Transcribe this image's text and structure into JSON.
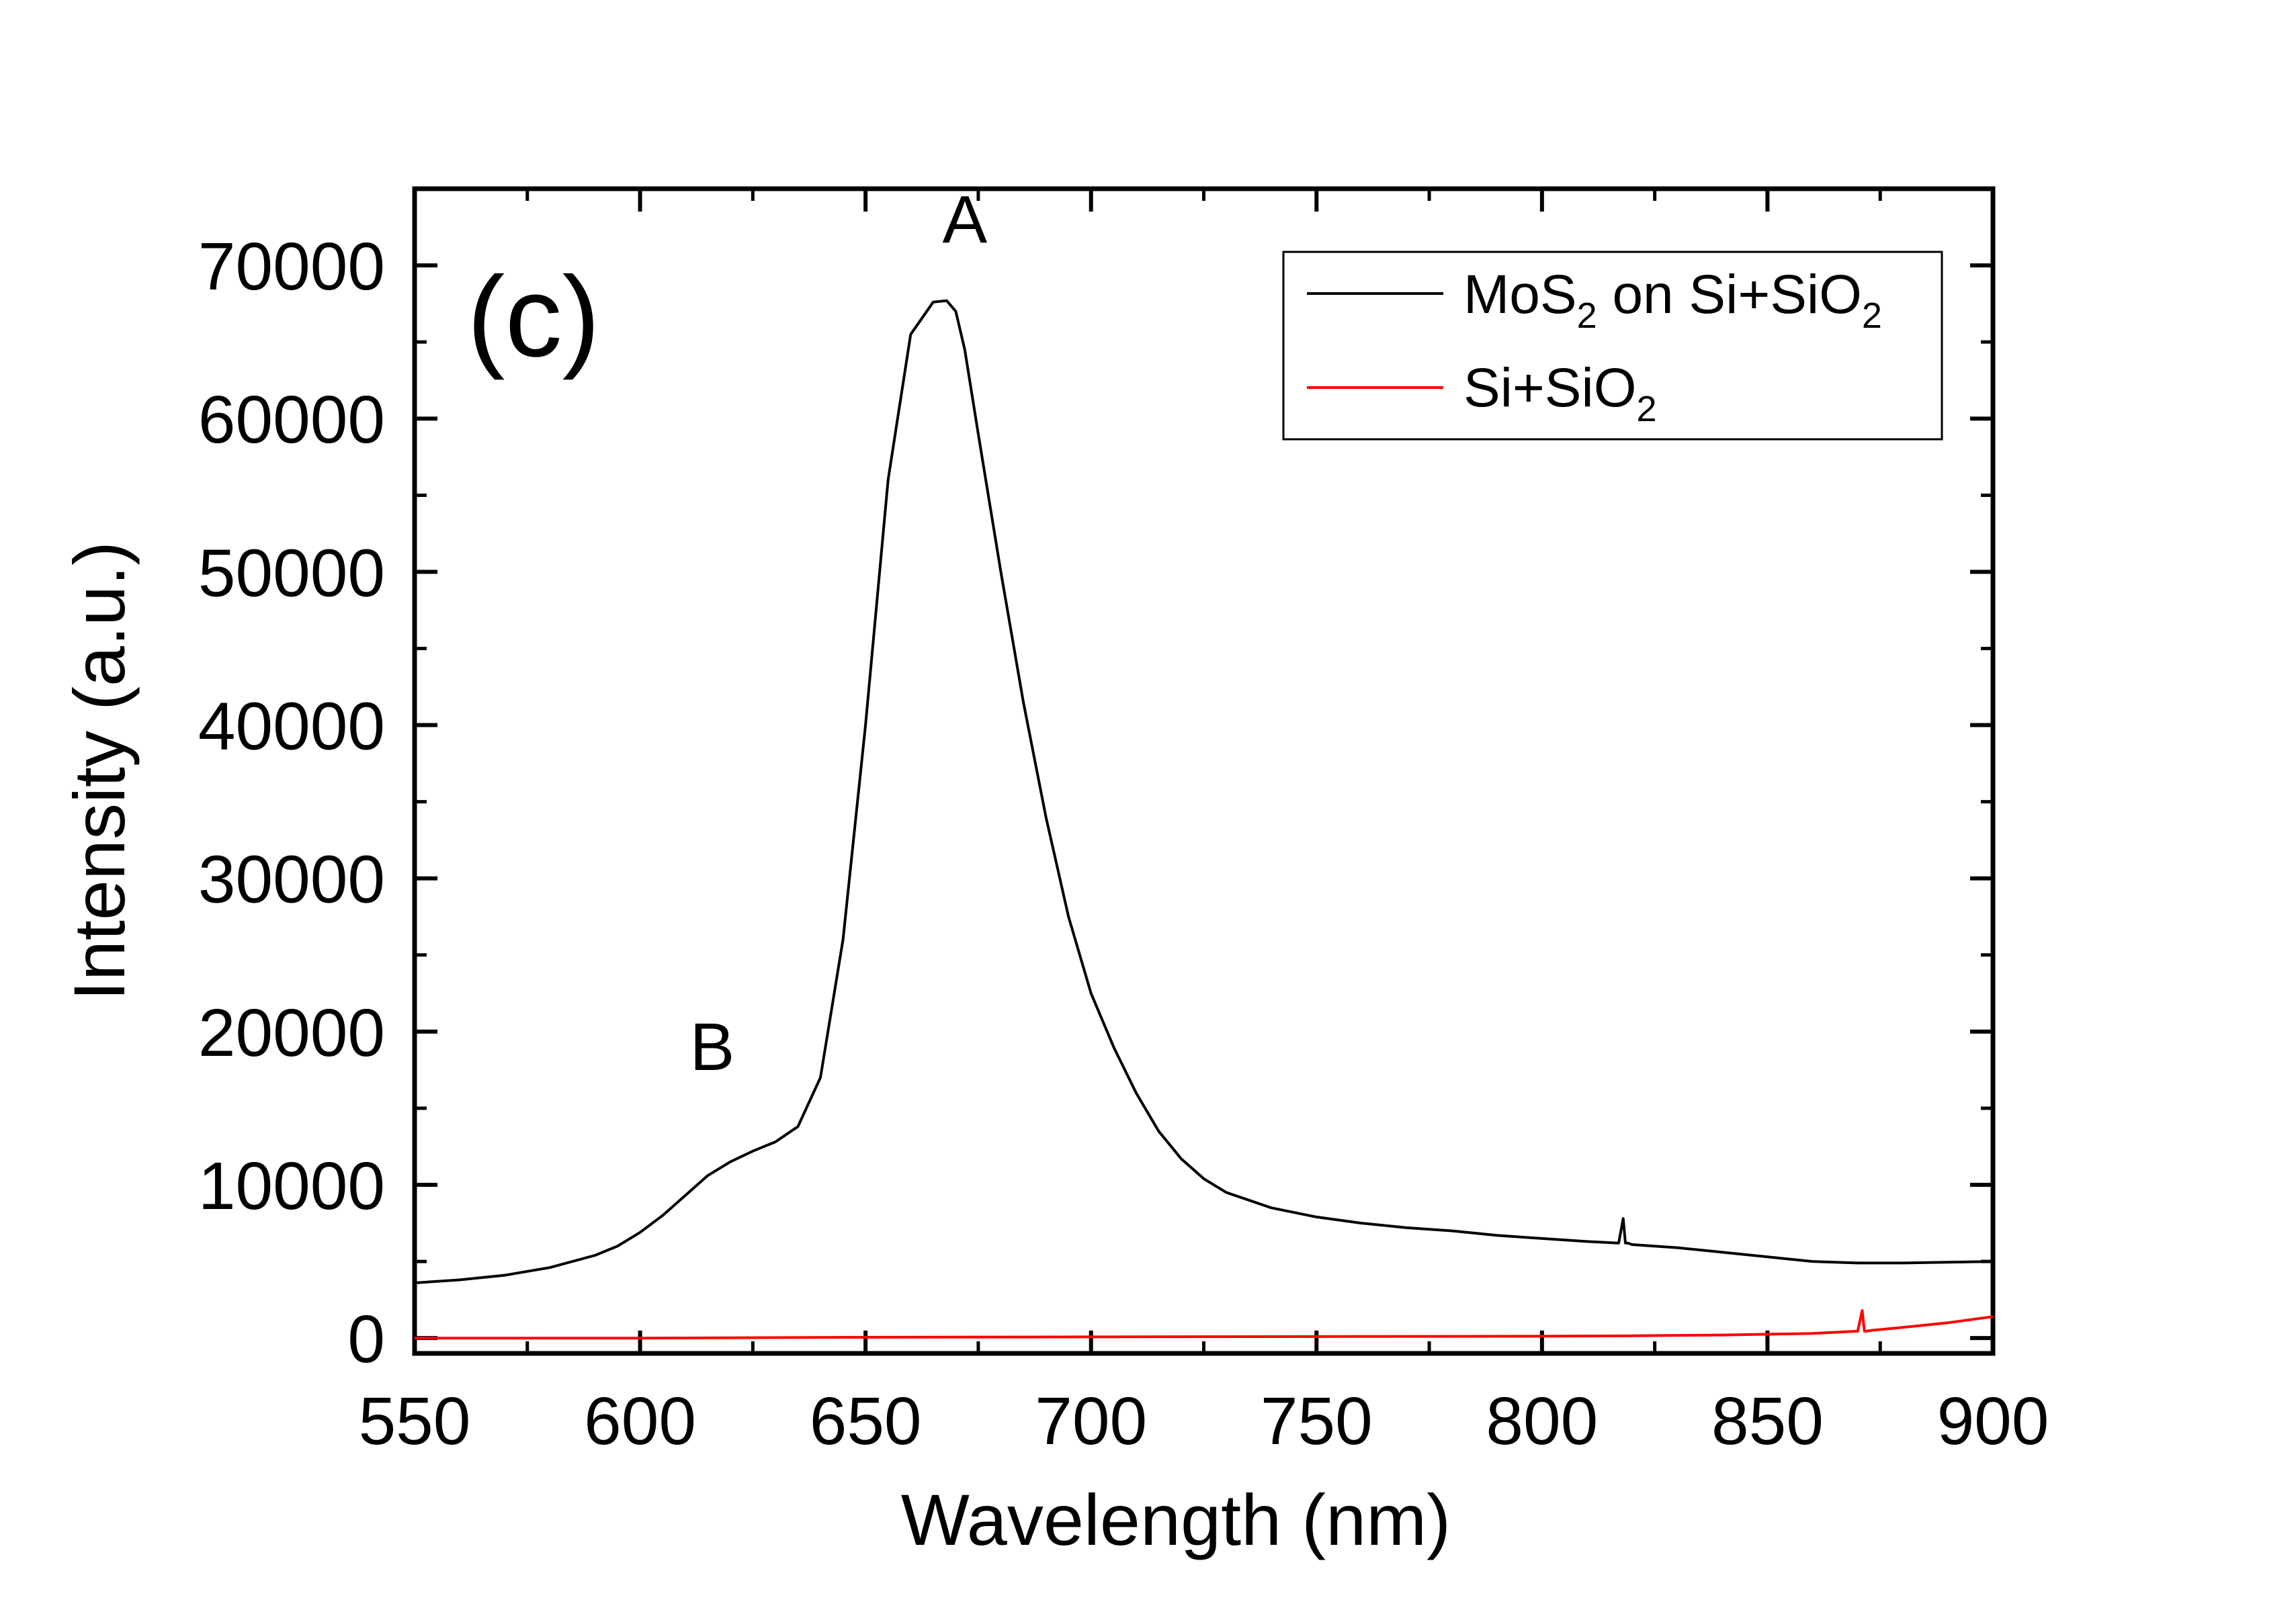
{
  "chart_data": {
    "type": "line",
    "panel_label": "(c)",
    "xlabel": "Wavelength (nm)",
    "ylabel": "Intensity (a.u.)",
    "xlim": [
      550,
      900
    ],
    "ylim": [
      -1000,
      75000
    ],
    "x_ticks": [
      550,
      600,
      650,
      700,
      750,
      800,
      850,
      900
    ],
    "y_ticks": [
      0,
      10000,
      20000,
      30000,
      40000,
      50000,
      60000,
      70000
    ],
    "legend_position": "top-right",
    "annotations": [
      {
        "text": "A",
        "x": 672,
        "y": 71500
      },
      {
        "text": "B",
        "x": 616,
        "y": 17500
      }
    ],
    "series": [
      {
        "name": "MoS2 on Si+SiO2",
        "legend_main": "MoS",
        "legend_sub1": "2",
        "legend_mid": " on Si+SiO",
        "legend_sub2": "2",
        "color": "#000000",
        "x": [
          550,
          560,
          570,
          580,
          590,
          595,
          600,
          605,
          610,
          615,
          620,
          625,
          630,
          635,
          640,
          645,
          650,
          655,
          660,
          665,
          668,
          670,
          672,
          675,
          680,
          685,
          690,
          695,
          700,
          705,
          710,
          715,
          720,
          725,
          730,
          740,
          750,
          760,
          770,
          780,
          790,
          800,
          810,
          817,
          818,
          818.5,
          819,
          820,
          830,
          840,
          850,
          860,
          870,
          880,
          890,
          900
        ],
        "y": [
          3600,
          3800,
          4100,
          4600,
          5400,
          6000,
          6900,
          8000,
          9300,
          10600,
          11500,
          12200,
          12800,
          13800,
          17000,
          26000,
          40000,
          56000,
          65500,
          67600,
          67700,
          67000,
          64500,
          59000,
          50000,
          41500,
          34000,
          27500,
          22500,
          19000,
          16000,
          13500,
          11700,
          10400,
          9500,
          8500,
          7900,
          7500,
          7200,
          7000,
          6700,
          6500,
          6300,
          6200,
          7800,
          6200,
          6200,
          6100,
          5900,
          5600,
          5300,
          5000,
          4900,
          4900,
          4950,
          5000
        ]
      },
      {
        "name": "Si+SiO2",
        "legend_main": "Si+SiO",
        "legend_sub1": "2",
        "color": "#ff0000",
        "x": [
          550,
          600,
          650,
          700,
          750,
          800,
          820,
          840,
          860,
          870,
          871,
          871.5,
          872,
          873,
          880,
          890,
          900
        ],
        "y": [
          0,
          0,
          50,
          80,
          100,
          120,
          150,
          200,
          300,
          450,
          1800,
          450,
          450,
          500,
          700,
          1000,
          1400
        ]
      }
    ]
  }
}
